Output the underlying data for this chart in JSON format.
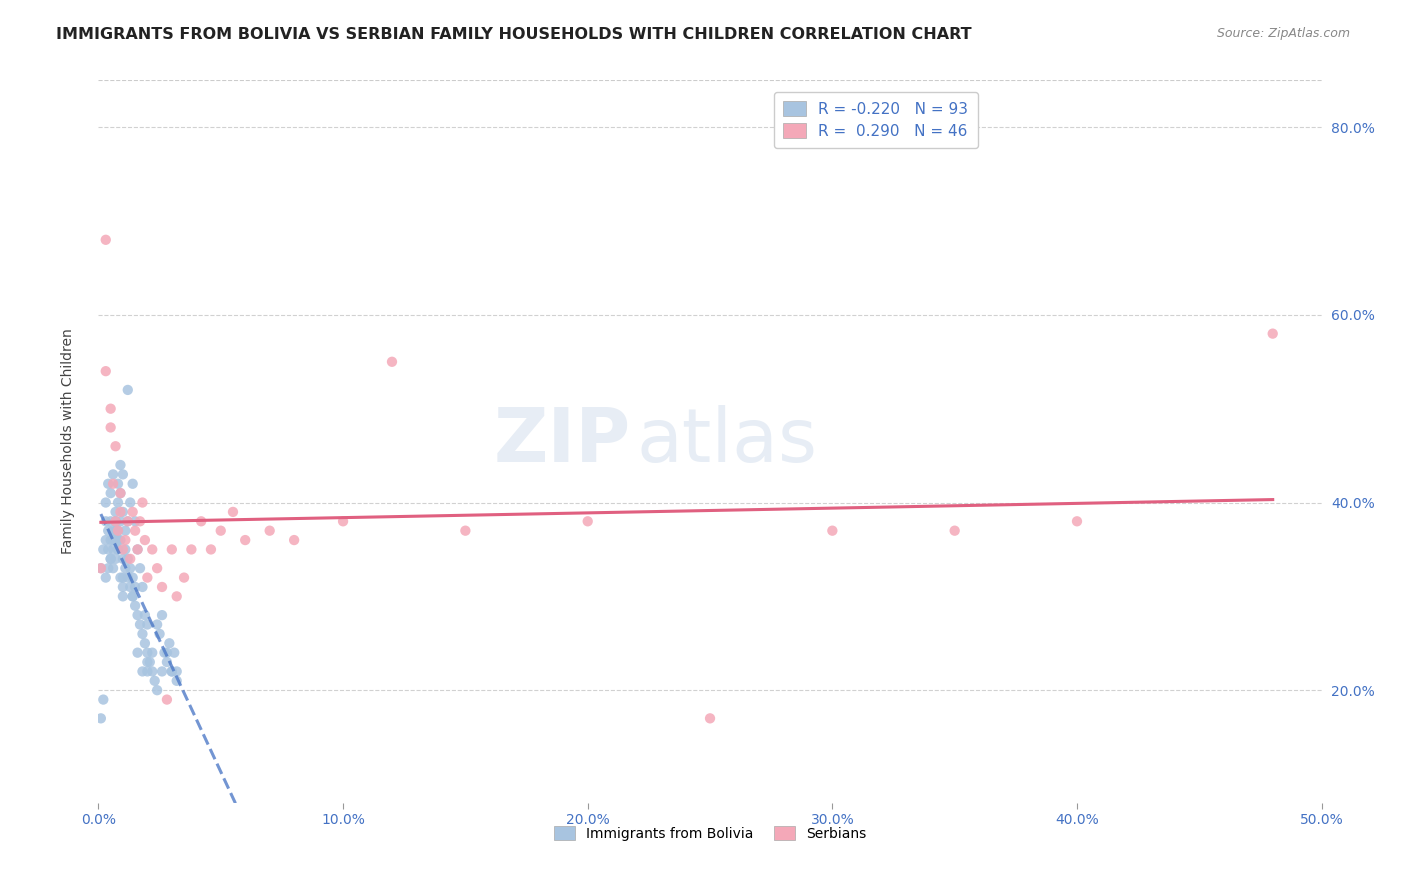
{
  "title": "IMMIGRANTS FROM BOLIVIA VS SERBIAN FAMILY HOUSEHOLDS WITH CHILDREN CORRELATION CHART",
  "source": "Source: ZipAtlas.com",
  "ylabel": "Family Households with Children",
  "y_ticks": [
    0.2,
    0.4,
    0.6,
    0.8
  ],
  "y_tick_labels": [
    "20.0%",
    "40.0%",
    "60.0%",
    "80.0%"
  ],
  "xlim": [
    0.0,
    0.5
  ],
  "ylim": [
    0.08,
    0.85
  ],
  "color_bolivia": "#a8c4e0",
  "color_serbia": "#f4a8b8",
  "color_line_bolivia": "#4472c4",
  "color_line_serbia": "#e06080",
  "color_axis_labels": "#4472c4",
  "watermark_zip": "ZIP",
  "watermark_atlas": "atlas",
  "bolivia_x": [
    0.001,
    0.002,
    0.003,
    0.003,
    0.004,
    0.004,
    0.005,
    0.005,
    0.005,
    0.006,
    0.006,
    0.006,
    0.007,
    0.007,
    0.007,
    0.008,
    0.008,
    0.008,
    0.009,
    0.009,
    0.01,
    0.01,
    0.01,
    0.011,
    0.011,
    0.012,
    0.012,
    0.013,
    0.013,
    0.014,
    0.014,
    0.015,
    0.015,
    0.016,
    0.017,
    0.018,
    0.019,
    0.02,
    0.021,
    0.022,
    0.023,
    0.024,
    0.025,
    0.026,
    0.027,
    0.028,
    0.029,
    0.03,
    0.031,
    0.032,
    0.003,
    0.004,
    0.005,
    0.006,
    0.007,
    0.007,
    0.008,
    0.008,
    0.009,
    0.009,
    0.01,
    0.01,
    0.011,
    0.012,
    0.013,
    0.014,
    0.015,
    0.016,
    0.017,
    0.018,
    0.019,
    0.02,
    0.003,
    0.004,
    0.005,
    0.006,
    0.007,
    0.008,
    0.009,
    0.01,
    0.012,
    0.014,
    0.016,
    0.018,
    0.02,
    0.022,
    0.024,
    0.026,
    0.028,
    0.03,
    0.032,
    0.002,
    0.001,
    0.02
  ],
  "bolivia_y": [
    0.33,
    0.35,
    0.38,
    0.36,
    0.37,
    0.35,
    0.34,
    0.36,
    0.38,
    0.33,
    0.35,
    0.37,
    0.36,
    0.34,
    0.38,
    0.37,
    0.36,
    0.35,
    0.36,
    0.38,
    0.34,
    0.32,
    0.31,
    0.33,
    0.35,
    0.32,
    0.34,
    0.33,
    0.31,
    0.32,
    0.3,
    0.31,
    0.29,
    0.28,
    0.27,
    0.26,
    0.25,
    0.24,
    0.23,
    0.22,
    0.21,
    0.2,
    0.26,
    0.22,
    0.24,
    0.23,
    0.25,
    0.22,
    0.24,
    0.22,
    0.4,
    0.42,
    0.41,
    0.43,
    0.39,
    0.38,
    0.4,
    0.42,
    0.44,
    0.41,
    0.39,
    0.43,
    0.37,
    0.38,
    0.4,
    0.42,
    0.38,
    0.35,
    0.33,
    0.31,
    0.28,
    0.27,
    0.32,
    0.33,
    0.34,
    0.36,
    0.37,
    0.35,
    0.32,
    0.3,
    0.52,
    0.3,
    0.24,
    0.22,
    0.23,
    0.24,
    0.27,
    0.28,
    0.24,
    0.22,
    0.21,
    0.19,
    0.17,
    0.22
  ],
  "serbia_x": [
    0.001,
    0.003,
    0.005,
    0.006,
    0.007,
    0.008,
    0.009,
    0.01,
    0.011,
    0.012,
    0.013,
    0.014,
    0.015,
    0.016,
    0.017,
    0.018,
    0.019,
    0.02,
    0.022,
    0.024,
    0.026,
    0.028,
    0.03,
    0.032,
    0.035,
    0.038,
    0.042,
    0.046,
    0.05,
    0.055,
    0.06,
    0.07,
    0.08,
    0.1,
    0.12,
    0.15,
    0.2,
    0.25,
    0.3,
    0.35,
    0.4,
    0.003,
    0.005,
    0.007,
    0.009,
    0.48
  ],
  "serbia_y": [
    0.33,
    0.54,
    0.5,
    0.42,
    0.38,
    0.37,
    0.39,
    0.35,
    0.36,
    0.38,
    0.34,
    0.39,
    0.37,
    0.35,
    0.38,
    0.4,
    0.36,
    0.32,
    0.35,
    0.33,
    0.31,
    0.19,
    0.35,
    0.3,
    0.32,
    0.35,
    0.38,
    0.35,
    0.37,
    0.39,
    0.36,
    0.37,
    0.36,
    0.38,
    0.55,
    0.37,
    0.38,
    0.17,
    0.37,
    0.37,
    0.38,
    0.68,
    0.48,
    0.46,
    0.41,
    0.58
  ],
  "background_color": "#ffffff",
  "grid_color": "#cccccc"
}
